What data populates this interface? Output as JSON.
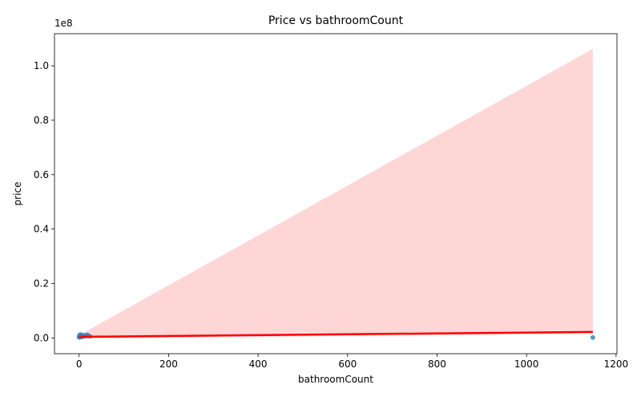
{
  "chart_data": {
    "type": "scatter",
    "title": "Price vs bathroomCount",
    "xlabel": "bathroomCount",
    "ylabel": "price",
    "y_offset_label": "1e8",
    "xlim": [
      -55,
      1202
    ],
    "ylim": [
      -5800000,
      111800000
    ],
    "x_ticks": [
      0,
      200,
      400,
      600,
      800,
      1000,
      1200
    ],
    "y_ticks": [
      0.0,
      0.2,
      0.4,
      0.6,
      0.8,
      1.0
    ],
    "y_tick_scale": 100000000,
    "grid": false,
    "points": [
      {
        "x": 0,
        "y": 300000
      },
      {
        "x": 1,
        "y": 500000
      },
      {
        "x": 1,
        "y": 900000
      },
      {
        "x": 1,
        "y": 200000
      },
      {
        "x": 2,
        "y": 600000
      },
      {
        "x": 2,
        "y": 1000000
      },
      {
        "x": 2,
        "y": 400000
      },
      {
        "x": 3,
        "y": 700000
      },
      {
        "x": 3,
        "y": 1200000
      },
      {
        "x": 3,
        "y": 300000
      },
      {
        "x": 4,
        "y": 800000
      },
      {
        "x": 4,
        "y": 500000
      },
      {
        "x": 5,
        "y": 900000
      },
      {
        "x": 5,
        "y": 600000
      },
      {
        "x": 6,
        "y": 700000
      },
      {
        "x": 7,
        "y": 1000000
      },
      {
        "x": 8,
        "y": 500000
      },
      {
        "x": 9,
        "y": 800000
      },
      {
        "x": 10,
        "y": 600000
      },
      {
        "x": 12,
        "y": 900000
      },
      {
        "x": 15,
        "y": 700000
      },
      {
        "x": 18,
        "y": 1100000
      },
      {
        "x": 20,
        "y": 800000
      },
      {
        "x": 24,
        "y": 600000
      },
      {
        "x": 1148,
        "y": 150000
      }
    ],
    "regression": {
      "x": [
        0,
        1148
      ],
      "y": [
        400000,
        2200000
      ],
      "color": "#ff0000"
    },
    "confidence_band": {
      "x": [
        0,
        1148
      ],
      "lower": [
        -300000,
        1600000
      ],
      "upper": [
        1000000,
        106200000
      ],
      "color": "#ffd6d6"
    },
    "point_color": "#3a86bc"
  }
}
